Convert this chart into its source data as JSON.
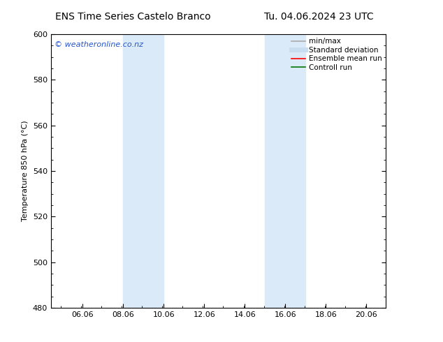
{
  "title_left": "ENS Time Series Castelo Branco",
  "title_right": "Tu. 04.06.2024 23 UTC",
  "ylabel": "Temperature 850 hPa (°C)",
  "ylim": [
    480,
    600
  ],
  "yticks": [
    480,
    500,
    520,
    540,
    560,
    580,
    600
  ],
  "xlim": [
    4.5,
    21.0
  ],
  "xtick_positions": [
    6.06,
    8.06,
    10.06,
    12.06,
    14.06,
    16.06,
    18.06,
    20.06
  ],
  "xtick_labels": [
    "06.06",
    "08.06",
    "10.06",
    "12.06",
    "14.06",
    "16.06",
    "18.06",
    "20.06"
  ],
  "shaded_bands": [
    {
      "x_start": 8.06,
      "x_end": 10.06
    },
    {
      "x_start": 15.06,
      "x_end": 17.06
    }
  ],
  "shade_color": "#daeaf8",
  "background_color": "#ffffff",
  "watermark_text": "© weatheronline.co.nz",
  "watermark_color": "#2255cc",
  "legend_items": [
    {
      "label": "min/max",
      "color": "#aaaaaa",
      "lw": 1.2,
      "style": "solid"
    },
    {
      "label": "Standard deviation",
      "color": "#c8ddf0",
      "lw": 5,
      "style": "solid"
    },
    {
      "label": "Ensemble mean run",
      "color": "#ff0000",
      "lw": 1.2,
      "style": "solid"
    },
    {
      "label": "Controll run",
      "color": "#007700",
      "lw": 1.2,
      "style": "solid"
    }
  ],
  "title_fontsize": 10,
  "tick_fontsize": 8,
  "ylabel_fontsize": 8,
  "watermark_fontsize": 8,
  "legend_fontsize": 7.5
}
